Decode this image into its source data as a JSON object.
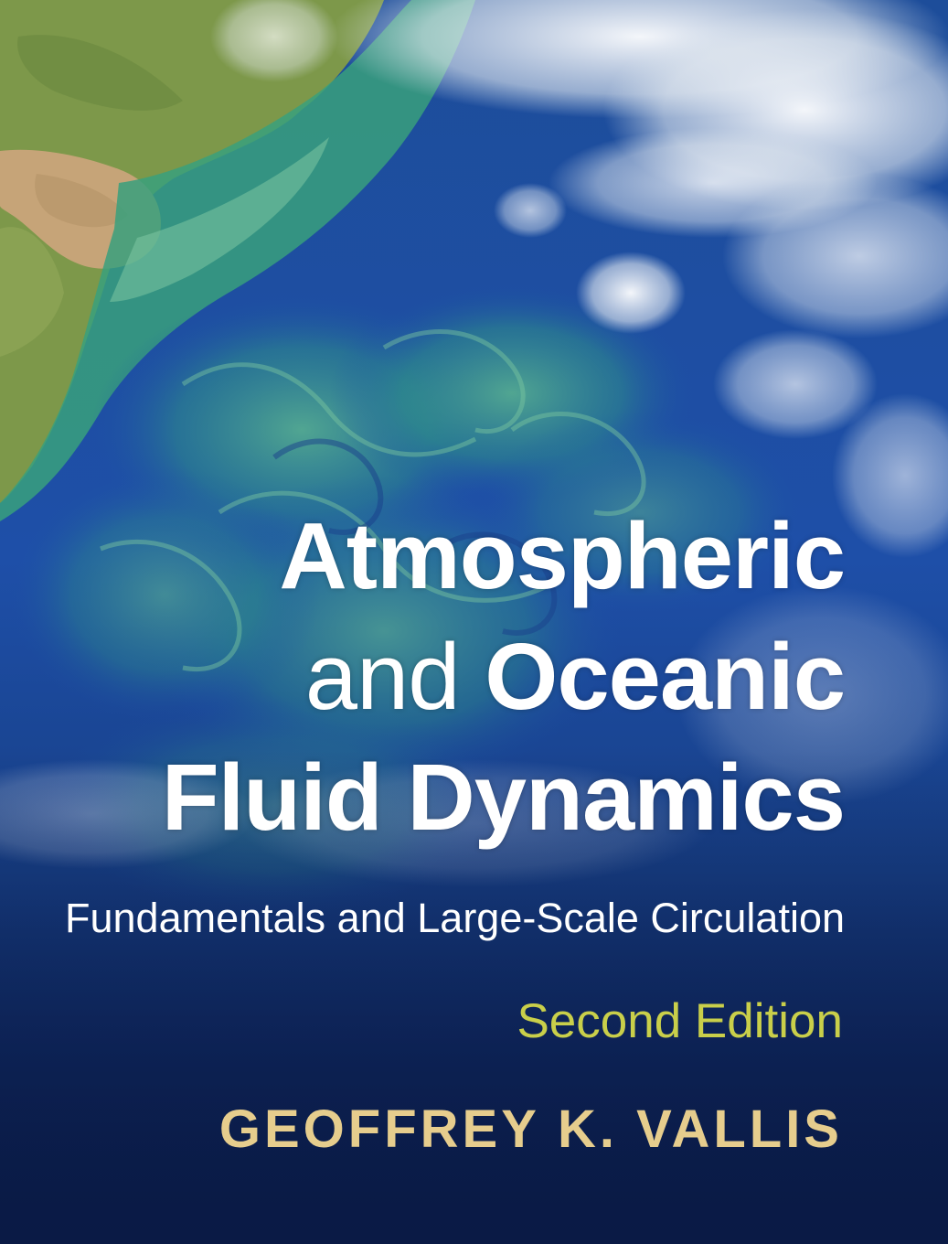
{
  "cover": {
    "title_line1": "Atmospheric",
    "title_line2_light": "and",
    "title_line2_bold": "Oceanic",
    "title_line3": "Fluid Dynamics",
    "subtitle": "Fundamentals and Large-Scale Circulation",
    "edition": "Second Edition",
    "author": "GEOFFREY K. VALLIS"
  },
  "colors": {
    "title": "#ffffff",
    "subtitle": "#ffffff",
    "edition": "#c9cf4a",
    "author": "#e6cd8d",
    "ocean_deep": "#0b1c4a",
    "ocean_mid": "#1d4aa0",
    "land": "#7f9b4c",
    "plankton_bloom": "#3fa58a",
    "river_sediment": "#c7a57a",
    "clouds": "#f2f4f6"
  }
}
